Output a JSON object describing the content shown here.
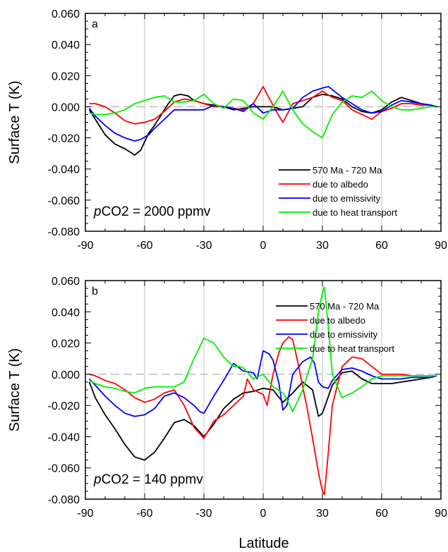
{
  "figure": {
    "xlabel": "Latitude"
  },
  "colors": {
    "black": "#000000",
    "red": "#ff0000",
    "blue": "#0000ff",
    "green": "#00ee00",
    "grid": "#c0c0c0",
    "zero": "#bdbdbd"
  },
  "chart_data": [
    {
      "type": "line",
      "panel": "a",
      "annotation_italic": "p",
      "annotation": "CO2 = 2000 ppmv",
      "xlabel": "",
      "ylabel": "Surface T (K)",
      "xlim": [
        -90,
        90
      ],
      "ylim": [
        -0.08,
        0.06
      ],
      "xticks": [
        "-90",
        "-60",
        "-30",
        "0",
        "30",
        "60",
        "90"
      ],
      "yticks": [
        "0.060",
        "0.040",
        "0.020",
        "0.000",
        "-0.020",
        "-0.040",
        "-0.060",
        "-0.080"
      ],
      "grid": "vertical",
      "legend_position": "lower-right",
      "series": [
        {
          "name": "570 Ma - 720 Ma",
          "color": "black",
          "x": [
            -88,
            -85,
            -80,
            -75,
            -70,
            -65,
            -62,
            -58,
            -55,
            -52,
            -48,
            -45,
            -42,
            -38,
            -35,
            -30,
            -25,
            -20,
            -15,
            -10,
            -5,
            0,
            5,
            10,
            15,
            20,
            25,
            30,
            35,
            40,
            45,
            50,
            55,
            60,
            65,
            70,
            75,
            80,
            85,
            88
          ],
          "y": [
            -0.002,
            -0.008,
            -0.018,
            -0.024,
            -0.027,
            -0.031,
            -0.028,
            -0.017,
            -0.012,
            -0.006,
            0.002,
            0.007,
            0.008,
            0.007,
            0.004,
            0.002,
            0.001,
            0.0,
            -0.002,
            -0.001,
            0.0,
            0.0,
            0.0,
            -0.002,
            -0.001,
            0.0,
            0.006,
            0.008,
            0.007,
            0.005,
            0.0,
            -0.003,
            -0.004,
            -0.002,
            0.003,
            0.006,
            0.004,
            0.002,
            0.001,
            0.0
          ]
        },
        {
          "name": "due to albedo",
          "color": "red",
          "x": [
            -88,
            -85,
            -80,
            -75,
            -70,
            -65,
            -60,
            -55,
            -50,
            -45,
            -40,
            -35,
            -30,
            -25,
            -20,
            -15,
            -10,
            -5,
            0,
            2,
            5,
            8,
            10,
            15,
            20,
            25,
            30,
            35,
            40,
            45,
            50,
            55,
            60,
            65,
            70,
            75,
            80,
            85,
            88
          ],
          "y": [
            0.002,
            0.002,
            0.0,
            -0.004,
            -0.009,
            -0.011,
            -0.01,
            -0.008,
            -0.003,
            0.003,
            0.005,
            0.004,
            0.002,
            0.0,
            0.0,
            -0.001,
            -0.002,
            0.002,
            0.013,
            0.008,
            0.001,
            -0.006,
            -0.01,
            0.002,
            0.004,
            0.006,
            0.01,
            0.006,
            0.004,
            -0.002,
            -0.005,
            -0.008,
            -0.003,
            -0.001,
            0.002,
            0.002,
            0.001,
            0.001,
            0.0
          ]
        },
        {
          "name": "due to emissivity",
          "color": "blue",
          "x": [
            -88,
            -85,
            -80,
            -75,
            -70,
            -65,
            -62,
            -58,
            -55,
            -50,
            -45,
            -40,
            -35,
            -30,
            -25,
            -20,
            -15,
            -10,
            -5,
            0,
            5,
            10,
            15,
            20,
            25,
            30,
            33,
            35,
            40,
            45,
            50,
            55,
            60,
            65,
            70,
            75,
            80,
            85,
            88
          ],
          "y": [
            -0.001,
            -0.006,
            -0.012,
            -0.017,
            -0.02,
            -0.022,
            -0.021,
            -0.018,
            -0.014,
            -0.008,
            -0.002,
            -0.002,
            -0.002,
            -0.002,
            0.001,
            0.0,
            -0.001,
            -0.003,
            0.002,
            -0.004,
            -0.002,
            -0.002,
            -0.001,
            0.006,
            0.01,
            0.012,
            0.013,
            0.011,
            0.006,
            0.002,
            -0.002,
            -0.004,
            -0.003,
            0.001,
            0.004,
            0.003,
            0.002,
            0.001,
            0.0
          ]
        },
        {
          "name": "due to heat transport",
          "color": "green",
          "x": [
            -88,
            -85,
            -80,
            -75,
            -70,
            -65,
            -60,
            -55,
            -50,
            -45,
            -40,
            -35,
            -30,
            -25,
            -20,
            -15,
            -10,
            -5,
            0,
            5,
            10,
            15,
            20,
            25,
            30,
            35,
            40,
            45,
            50,
            55,
            60,
            65,
            70,
            75,
            80,
            85,
            88
          ],
          "y": [
            -0.004,
            -0.005,
            -0.005,
            -0.004,
            -0.002,
            0.002,
            0.004,
            0.006,
            0.007,
            0.003,
            0.003,
            0.004,
            0.008,
            0.002,
            -0.001,
            0.005,
            0.004,
            -0.004,
            -0.008,
            0.0,
            0.01,
            -0.002,
            -0.011,
            -0.016,
            -0.02,
            -0.005,
            0.003,
            0.007,
            0.006,
            0.01,
            0.004,
            0.0,
            -0.002,
            -0.002,
            -0.001,
            0.0,
            0.0
          ]
        }
      ]
    },
    {
      "type": "line",
      "panel": "b",
      "annotation_italic": "p",
      "annotation": "CO2 = 140 ppmv",
      "xlabel": "Latitude",
      "ylabel": "Surface T (K)",
      "xlim": [
        -90,
        90
      ],
      "ylim": [
        -0.08,
        0.06
      ],
      "xticks": [
        "-90",
        "-60",
        "-30",
        "0",
        "30",
        "60",
        "90"
      ],
      "yticks": [
        "0.060",
        "0.040",
        "0.020",
        "0.000",
        "-0.020",
        "-0.040",
        "-0.060",
        "-0.080"
      ],
      "grid": "vertical",
      "legend_position": "upper-right",
      "series": [
        {
          "name": "570 Ma - 720 Ma",
          "color": "black",
          "x": [
            -88,
            -85,
            -80,
            -75,
            -70,
            -65,
            -60,
            -55,
            -50,
            -45,
            -40,
            -35,
            -30,
            -25,
            -20,
            -15,
            -10,
            -5,
            0,
            5,
            10,
            15,
            20,
            25,
            28,
            30,
            35,
            40,
            45,
            50,
            55,
            60,
            65,
            70,
            75,
            80,
            85,
            88
          ],
          "y": [
            -0.005,
            -0.015,
            -0.026,
            -0.035,
            -0.045,
            -0.053,
            -0.055,
            -0.05,
            -0.041,
            -0.031,
            -0.029,
            -0.033,
            -0.04,
            -0.032,
            -0.022,
            -0.016,
            -0.012,
            -0.011,
            -0.009,
            -0.01,
            -0.018,
            -0.012,
            -0.005,
            -0.01,
            -0.027,
            -0.025,
            -0.007,
            0.001,
            0.002,
            -0.003,
            -0.006,
            -0.006,
            -0.006,
            -0.005,
            -0.004,
            -0.003,
            -0.002,
            -0.001
          ]
        },
        {
          "name": "due to albedo",
          "color": "red",
          "x": [
            -88,
            -85,
            -80,
            -75,
            -70,
            -65,
            -60,
            -55,
            -50,
            -45,
            -40,
            -35,
            -30,
            -25,
            -20,
            -15,
            -10,
            -8,
            -5,
            0,
            2,
            5,
            8,
            10,
            13,
            15,
            18,
            20,
            22,
            25,
            28,
            30,
            31,
            33,
            35,
            40,
            45,
            50,
            55,
            60,
            65,
            70,
            75,
            80,
            85,
            88
          ],
          "y": [
            0.0,
            -0.001,
            -0.004,
            -0.006,
            -0.01,
            -0.015,
            -0.018,
            -0.016,
            -0.012,
            -0.01,
            -0.02,
            -0.034,
            -0.041,
            -0.03,
            -0.026,
            -0.02,
            -0.014,
            -0.003,
            -0.01,
            -0.013,
            -0.02,
            0.0,
            0.014,
            0.02,
            0.024,
            0.022,
            0.005,
            -0.008,
            -0.02,
            -0.041,
            -0.063,
            -0.075,
            -0.077,
            -0.05,
            -0.02,
            0.005,
            0.011,
            0.01,
            0.005,
            0.0,
            0.0,
            0.0,
            -0.001,
            -0.001,
            -0.001,
            -0.001
          ]
        },
        {
          "name": "due to emissivity",
          "color": "blue",
          "x": [
            -88,
            -85,
            -80,
            -75,
            -70,
            -65,
            -60,
            -55,
            -50,
            -45,
            -40,
            -35,
            -32,
            -30,
            -25,
            -20,
            -15,
            -10,
            -5,
            -3,
            0,
            3,
            5,
            8,
            10,
            12,
            15,
            20,
            24,
            26,
            28,
            30,
            33,
            35,
            40,
            45,
            50,
            55,
            60,
            65,
            70,
            75,
            80,
            85,
            88
          ],
          "y": [
            -0.003,
            -0.007,
            -0.014,
            -0.02,
            -0.025,
            -0.027,
            -0.026,
            -0.022,
            -0.014,
            -0.012,
            -0.015,
            -0.02,
            -0.024,
            -0.025,
            -0.014,
            -0.004,
            0.007,
            0.002,
            0.001,
            -0.003,
            0.015,
            0.013,
            0.009,
            -0.006,
            -0.023,
            -0.02,
            0.0,
            0.008,
            0.011,
            0.007,
            -0.005,
            -0.008,
            -0.009,
            -0.004,
            0.003,
            0.004,
            0.002,
            -0.001,
            -0.003,
            -0.003,
            -0.003,
            -0.002,
            -0.002,
            -0.002,
            -0.001
          ]
        },
        {
          "name": "due to heat transport",
          "color": "green",
          "x": [
            -88,
            -85,
            -80,
            -75,
            -70,
            -65,
            -60,
            -55,
            -50,
            -45,
            -40,
            -35,
            -30,
            -25,
            -20,
            -15,
            -12,
            -10,
            -5,
            0,
            5,
            10,
            12,
            15,
            20,
            25,
            28,
            30,
            31,
            33,
            35,
            40,
            45,
            50,
            55,
            60,
            65,
            70,
            75,
            80,
            85,
            88
          ],
          "y": [
            -0.004,
            -0.006,
            -0.008,
            -0.009,
            -0.011,
            -0.012,
            -0.009,
            -0.008,
            -0.008,
            -0.008,
            -0.005,
            0.01,
            0.023,
            0.02,
            0.011,
            0.005,
            0.005,
            0.004,
            -0.003,
            0.0,
            -0.008,
            -0.012,
            -0.016,
            -0.024,
            -0.01,
            0.01,
            0.04,
            0.052,
            0.056,
            0.03,
            0.0,
            -0.015,
            -0.012,
            -0.008,
            -0.003,
            -0.001,
            -0.001,
            -0.001,
            -0.001,
            -0.001,
            -0.001,
            -0.001
          ]
        }
      ]
    }
  ]
}
